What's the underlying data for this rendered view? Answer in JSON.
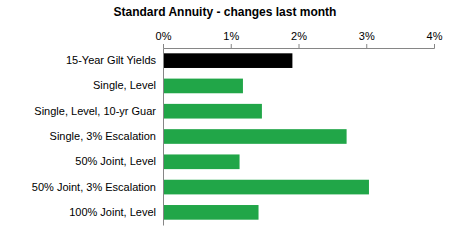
{
  "chart_data": {
    "type": "bar",
    "title": "Standard Annuity - changes last month",
    "orientation": "horizontal",
    "categories": [
      "15-Year Gilt Yields",
      "Single, Level",
      "Single, Level, 10-yr Guar",
      "Single, 3% Escalation",
      "50% Joint, Level",
      "50% Joint, 3% Escalation",
      "100% Joint, Level"
    ],
    "values": [
      1.91,
      1.18,
      1.46,
      2.71,
      1.13,
      3.04,
      1.41
    ],
    "colors": [
      "#000000",
      "#21a648",
      "#21a648",
      "#21a648",
      "#21a648",
      "#21a648",
      "#21a648"
    ],
    "xlim": [
      0,
      4
    ],
    "xticks": [
      {
        "value": 0,
        "label": "0%"
      },
      {
        "value": 1,
        "label": "1%"
      },
      {
        "value": 2,
        "label": "2%"
      },
      {
        "value": 3,
        "label": "3%"
      },
      {
        "value": 4,
        "label": "4%"
      }
    ],
    "grid": false
  }
}
